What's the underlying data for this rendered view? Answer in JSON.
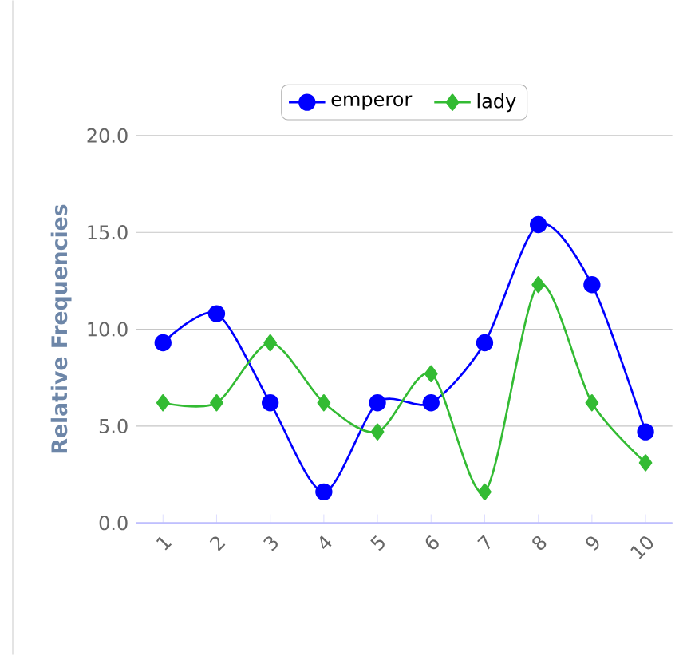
{
  "chart_data": {
    "type": "line",
    "ylabel": "Relative Frequencies",
    "categories": [
      "1",
      "2",
      "3",
      "4",
      "5",
      "6",
      "7",
      "8",
      "9",
      "10"
    ],
    "series": [
      {
        "name": "emperor",
        "color": "#0000ff",
        "marker": "circle",
        "values": [
          9.3,
          10.8,
          6.2,
          1.6,
          6.2,
          6.2,
          9.3,
          15.4,
          12.3,
          4.7
        ]
      },
      {
        "name": "lady",
        "color": "#33bb33",
        "marker": "diamond",
        "values": [
          6.2,
          6.2,
          9.3,
          6.2,
          4.7,
          7.7,
          1.6,
          12.3,
          6.2,
          3.1
        ]
      }
    ],
    "ylim": [
      0,
      20
    ],
    "yticks": [
      {
        "value": 0,
        "label": "0.0"
      },
      {
        "value": 5,
        "label": "5.0"
      },
      {
        "value": 10,
        "label": "10.0"
      },
      {
        "value": 15,
        "label": "15.0"
      },
      {
        "value": 20,
        "label": "20.0"
      }
    ],
    "grid": "y",
    "legend": "top"
  }
}
